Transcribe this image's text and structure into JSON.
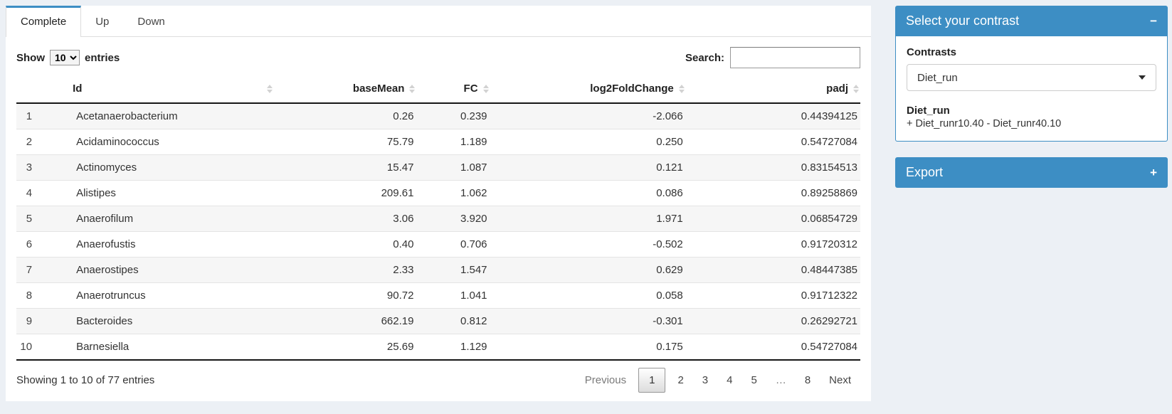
{
  "colors": {
    "primary": "#3d8ec4",
    "page_bg": "#ecf0f5"
  },
  "tabs": [
    {
      "label": "Complete",
      "active": true
    },
    {
      "label": "Up",
      "active": false
    },
    {
      "label": "Down",
      "active": false
    }
  ],
  "table_controls": {
    "show_label": "Show",
    "page_length": "10",
    "entries_label": "entries",
    "search_label": "Search:",
    "search_value": ""
  },
  "table": {
    "columns": [
      "Id",
      "baseMean",
      "FC",
      "log2FoldChange",
      "padj"
    ],
    "rows": [
      {
        "index": "1",
        "id": "Acetanaerobacterium",
        "baseMean": "0.26",
        "fc": "0.239",
        "log2fc": "-2.066",
        "padj": "0.44394125"
      },
      {
        "index": "2",
        "id": "Acidaminococcus",
        "baseMean": "75.79",
        "fc": "1.189",
        "log2fc": "0.250",
        "padj": "0.54727084"
      },
      {
        "index": "3",
        "id": "Actinomyces",
        "baseMean": "15.47",
        "fc": "1.087",
        "log2fc": "0.121",
        "padj": "0.83154513"
      },
      {
        "index": "4",
        "id": "Alistipes",
        "baseMean": "209.61",
        "fc": "1.062",
        "log2fc": "0.086",
        "padj": "0.89258869"
      },
      {
        "index": "5",
        "id": "Anaerofilum",
        "baseMean": "3.06",
        "fc": "3.920",
        "log2fc": "1.971",
        "padj": "0.06854729"
      },
      {
        "index": "6",
        "id": "Anaerofustis",
        "baseMean": "0.40",
        "fc": "0.706",
        "log2fc": "-0.502",
        "padj": "0.91720312"
      },
      {
        "index": "7",
        "id": "Anaerostipes",
        "baseMean": "2.33",
        "fc": "1.547",
        "log2fc": "0.629",
        "padj": "0.48447385"
      },
      {
        "index": "8",
        "id": "Anaerotruncus",
        "baseMean": "90.72",
        "fc": "1.041",
        "log2fc": "0.058",
        "padj": "0.91712322"
      },
      {
        "index": "9",
        "id": "Bacteroides",
        "baseMean": "662.19",
        "fc": "0.812",
        "log2fc": "-0.301",
        "padj": "0.26292721"
      },
      {
        "index": "10",
        "id": "Barnesiella",
        "baseMean": "25.69",
        "fc": "1.129",
        "log2fc": "0.175",
        "padj": "0.54727084"
      }
    ],
    "info": "Showing 1 to 10 of 77 entries",
    "pagination": {
      "previous": "Previous",
      "pages": [
        "1",
        "2",
        "3",
        "4",
        "5",
        "…",
        "8"
      ],
      "current_page": "1",
      "next": "Next"
    }
  },
  "contrast_panel": {
    "title": "Select your contrast",
    "collapse_icon": "−",
    "contrasts_label": "Contrasts",
    "selected_contrast": "Diet_run",
    "contrast_name": "Diet_run",
    "contrast_formula": "+ Diet_runr10.40 - Diet_runr40.10"
  },
  "export_panel": {
    "title": "Export",
    "expand_icon": "+"
  }
}
